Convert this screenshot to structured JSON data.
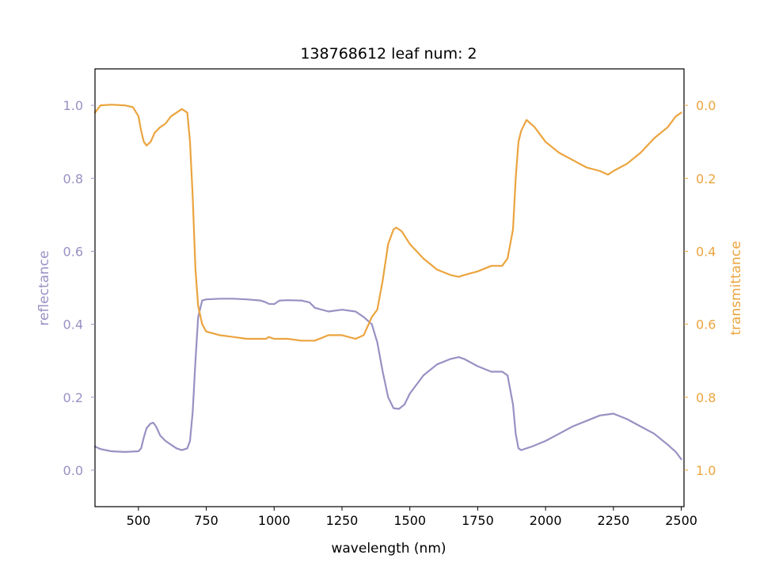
{
  "chart_data": {
    "type": "line",
    "title": "138768612 leaf num: 2",
    "xlabel": "wavelength (nm)",
    "ylabel_left": "reflectance",
    "ylabel_right": "transmittance",
    "xlim": [
      340,
      2510
    ],
    "ylim_left": [
      -0.1,
      1.1
    ],
    "ylim_right": [
      1.1,
      -0.1
    ],
    "right_axis_inverted": true,
    "grid": false,
    "legend": "none",
    "colors": {
      "reflectance": "#9891c3",
      "transmittance": "#eba43e"
    },
    "x_ticks": [
      "500",
      "750",
      "1000",
      "1250",
      "1500",
      "1750",
      "2000",
      "2250",
      "2500"
    ],
    "y_ticks_left": [
      "0.0",
      "0.2",
      "0.4",
      "0.6",
      "0.8",
      "1.0"
    ],
    "y_ticks_right": [
      "0.0",
      "0.2",
      "0.4",
      "0.6",
      "0.8",
      "1.0"
    ],
    "series": [
      {
        "axis": "left",
        "x": [
          340,
          360,
          400,
          450,
          500,
          510,
          520,
          530,
          545,
          555,
          565,
          580,
          600,
          620,
          640,
          660,
          680,
          690,
          700,
          710,
          720,
          735,
          750,
          800,
          850,
          900,
          950,
          970,
          980,
          1000,
          1010,
          1020,
          1050,
          1100,
          1130,
          1150,
          1200,
          1250,
          1300,
          1330,
          1360,
          1380,
          1400,
          1420,
          1440,
          1460,
          1480,
          1500,
          1550,
          1600,
          1650,
          1680,
          1700,
          1750,
          1800,
          1840,
          1860,
          1880,
          1890,
          1900,
          1910,
          1950,
          2000,
          2050,
          2100,
          2150,
          2200,
          2250,
          2300,
          2350,
          2400,
          2450,
          2480,
          2500
        ],
        "y": [
          0.065,
          0.058,
          0.052,
          0.05,
          0.052,
          0.06,
          0.09,
          0.115,
          0.128,
          0.13,
          0.12,
          0.095,
          0.08,
          0.07,
          0.06,
          0.055,
          0.06,
          0.08,
          0.16,
          0.3,
          0.42,
          0.465,
          0.468,
          0.47,
          0.47,
          0.468,
          0.465,
          0.46,
          0.456,
          0.455,
          0.46,
          0.465,
          0.466,
          0.465,
          0.46,
          0.445,
          0.435,
          0.44,
          0.435,
          0.42,
          0.4,
          0.35,
          0.27,
          0.2,
          0.17,
          0.168,
          0.18,
          0.21,
          0.26,
          0.29,
          0.305,
          0.31,
          0.305,
          0.285,
          0.27,
          0.27,
          0.26,
          0.18,
          0.1,
          0.06,
          0.055,
          0.065,
          0.08,
          0.1,
          0.12,
          0.135,
          0.15,
          0.155,
          0.14,
          0.12,
          0.1,
          0.07,
          0.05,
          0.03
        ]
      },
      {
        "axis": "right",
        "x": [
          340,
          360,
          400,
          450,
          480,
          500,
          510,
          520,
          530,
          545,
          560,
          580,
          600,
          620,
          640,
          660,
          680,
          690,
          700,
          710,
          720,
          735,
          750,
          800,
          850,
          900,
          950,
          970,
          980,
          1000,
          1050,
          1100,
          1150,
          1200,
          1250,
          1300,
          1330,
          1360,
          1380,
          1400,
          1420,
          1440,
          1450,
          1470,
          1500,
          1550,
          1600,
          1650,
          1680,
          1700,
          1750,
          1800,
          1840,
          1860,
          1880,
          1890,
          1900,
          1910,
          1930,
          1960,
          2000,
          2050,
          2100,
          2150,
          2200,
          2230,
          2250,
          2300,
          2350,
          2400,
          2450,
          2480,
          2500
        ],
        "y": [
          0.02,
          0.0,
          -0.002,
          0.0,
          0.005,
          0.03,
          0.07,
          0.1,
          0.11,
          0.1,
          0.075,
          0.06,
          0.05,
          0.03,
          0.02,
          0.01,
          0.02,
          0.1,
          0.25,
          0.45,
          0.55,
          0.6,
          0.62,
          0.63,
          0.635,
          0.64,
          0.64,
          0.64,
          0.635,
          0.64,
          0.64,
          0.645,
          0.645,
          0.63,
          0.63,
          0.64,
          0.63,
          0.58,
          0.56,
          0.48,
          0.38,
          0.34,
          0.335,
          0.345,
          0.38,
          0.42,
          0.45,
          0.465,
          0.47,
          0.465,
          0.455,
          0.44,
          0.44,
          0.42,
          0.34,
          0.2,
          0.1,
          0.07,
          0.04,
          0.06,
          0.1,
          0.13,
          0.15,
          0.17,
          0.18,
          0.19,
          0.18,
          0.16,
          0.13,
          0.09,
          0.06,
          0.03,
          0.02
        ]
      }
    ]
  }
}
